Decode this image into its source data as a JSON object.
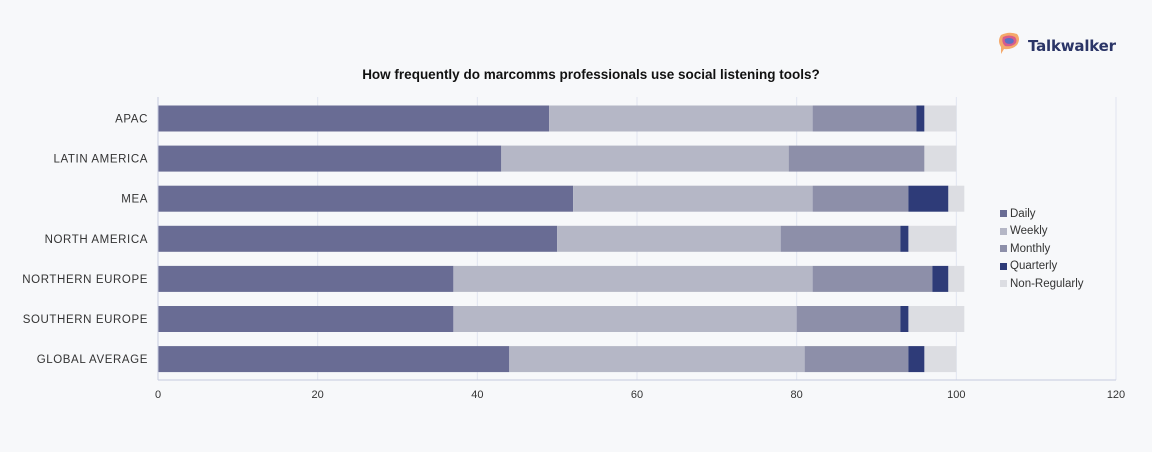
{
  "brand": {
    "name": "Talkwalker",
    "logo_icon": "talkwalker-logo-icon"
  },
  "colors": {
    "Daily": "#696c94",
    "Weekly": "#b5b7c6",
    "Monthly": "#8d8fa9",
    "Quarterly": "#2e3b78",
    "Non-Regularly": "#dcdde2",
    "axis": "#c6cade",
    "grid": "#e1e4f0"
  },
  "chart_data": {
    "type": "bar",
    "orientation": "horizontal",
    "stacked": true,
    "title": "How frequently do marcomms professionals use social listening tools?",
    "categories": [
      "APAC",
      "LATIN AMERICA",
      "MEA",
      "NORTH AMERICA",
      "NORTHERN EUROPE",
      "SOUTHERN EUROPE",
      "GLOBAL AVERAGE"
    ],
    "series": [
      {
        "name": "Daily",
        "values": [
          49,
          43,
          52,
          50,
          37,
          37,
          44
        ]
      },
      {
        "name": "Weekly",
        "values": [
          33,
          36,
          30,
          28,
          45,
          43,
          37
        ]
      },
      {
        "name": "Monthly",
        "values": [
          13,
          17,
          12,
          15,
          15,
          13,
          13
        ]
      },
      {
        "name": "Quarterly",
        "values": [
          1,
          0,
          5,
          1,
          2,
          1,
          2
        ]
      },
      {
        "name": "Non-Regularly",
        "values": [
          4,
          4,
          2,
          6,
          2,
          7,
          4
        ]
      }
    ],
    "xlim": [
      0,
      120
    ],
    "xticks": [
      0,
      20,
      40,
      60,
      80,
      100,
      120
    ],
    "grid": true,
    "legend_position": "right"
  }
}
